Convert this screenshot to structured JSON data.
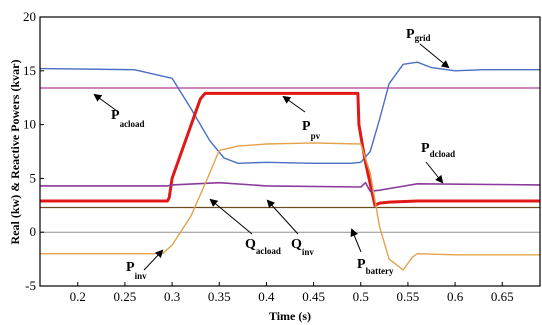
{
  "chart_data": {
    "type": "line",
    "xlabel": "Time (s)",
    "ylabel": "Real   (kw) & Reactive Powers (kvar)",
    "xlim": [
      0.16,
      0.69
    ],
    "ylim": [
      -5,
      20
    ],
    "xticks": [
      "0.2",
      "0.25",
      "0.3",
      "0.35",
      "0.4",
      "0.45",
      "0.5",
      "0.55",
      "0.6",
      "0.65"
    ],
    "yticks": [
      "-5",
      "0",
      "5",
      "10",
      "15",
      "20"
    ],
    "grid": false,
    "legend": "none",
    "series": [
      {
        "name": "P_acload",
        "color": "#b03c9e",
        "x": [
          0.16,
          0.69
        ],
        "y": [
          13.4,
          13.4
        ]
      },
      {
        "name": "P_grid",
        "color": "#4a6fc4",
        "x": [
          0.16,
          0.26,
          0.3,
          0.32,
          0.34,
          0.355,
          0.37,
          0.4,
          0.45,
          0.49,
          0.5,
          0.51,
          0.52,
          0.53,
          0.545,
          0.56,
          0.575,
          0.6,
          0.63,
          0.69
        ],
        "y": [
          15.2,
          15.1,
          14.3,
          11.5,
          8.5,
          6.9,
          6.4,
          6.5,
          6.4,
          6.4,
          6.5,
          7.5,
          10.5,
          13.8,
          15.6,
          15.8,
          15.3,
          15.0,
          15.1,
          15.1
        ]
      },
      {
        "name": "P_pv",
        "color": "#e01818",
        "x": [
          0.16,
          0.295,
          0.297,
          0.3,
          0.33,
          0.335,
          0.45,
          0.497,
          0.498,
          0.502,
          0.505,
          0.51,
          0.515,
          0.52,
          0.53,
          0.56,
          0.69
        ],
        "y": [
          2.9,
          2.9,
          3.2,
          5.0,
          12.4,
          12.9,
          12.9,
          12.9,
          10.0,
          8.0,
          6.5,
          4.5,
          2.5,
          2.7,
          2.8,
          2.9,
          2.9
        ]
      },
      {
        "name": "P_dcload",
        "color": "#8a3a9a",
        "x": [
          0.16,
          0.295,
          0.3,
          0.35,
          0.4,
          0.5,
          0.505,
          0.51,
          0.52,
          0.54,
          0.56,
          0.69
        ],
        "y": [
          4.3,
          4.3,
          4.4,
          4.6,
          4.3,
          4.2,
          4.6,
          3.8,
          3.9,
          4.2,
          4.5,
          4.4
        ]
      },
      {
        "name": "Q_acload",
        "color": "#6b4a1e",
        "x": [
          0.16,
          0.69
        ],
        "y": [
          2.3,
          2.3
        ]
      },
      {
        "name": "Q_inv",
        "color": "#909090",
        "x": [
          0.16,
          0.69
        ],
        "y": [
          0.0,
          0.0
        ]
      },
      {
        "name": "P_inv",
        "color": "#e3a24a",
        "x": [
          0.16,
          0.29,
          0.3,
          0.32,
          0.34,
          0.35,
          0.37,
          0.4,
          0.45,
          0.5,
          0.51,
          0.52,
          0.53,
          0.545,
          0.555,
          0.56,
          0.6,
          0.69
        ],
        "y": [
          -2.0,
          -2.0,
          -1.2,
          1.5,
          5.5,
          7.6,
          8.0,
          8.2,
          8.3,
          8.2,
          5.5,
          0.5,
          -2.5,
          -3.5,
          -2.3,
          -2.0,
          -2.1,
          -2.1
        ]
      }
    ],
    "annotations": [
      {
        "main": "P",
        "sub": "grid"
      },
      {
        "main": "P",
        "sub": "acload"
      },
      {
        "main": "P",
        "sub": "pv"
      },
      {
        "main": "P",
        "sub": "dcload"
      },
      {
        "main": "P",
        "sub": "inv"
      },
      {
        "main": "Q",
        "sub": "acload"
      },
      {
        "main": "Q",
        "sub": "inv"
      },
      {
        "main": "P",
        "sub": "battery"
      }
    ]
  }
}
